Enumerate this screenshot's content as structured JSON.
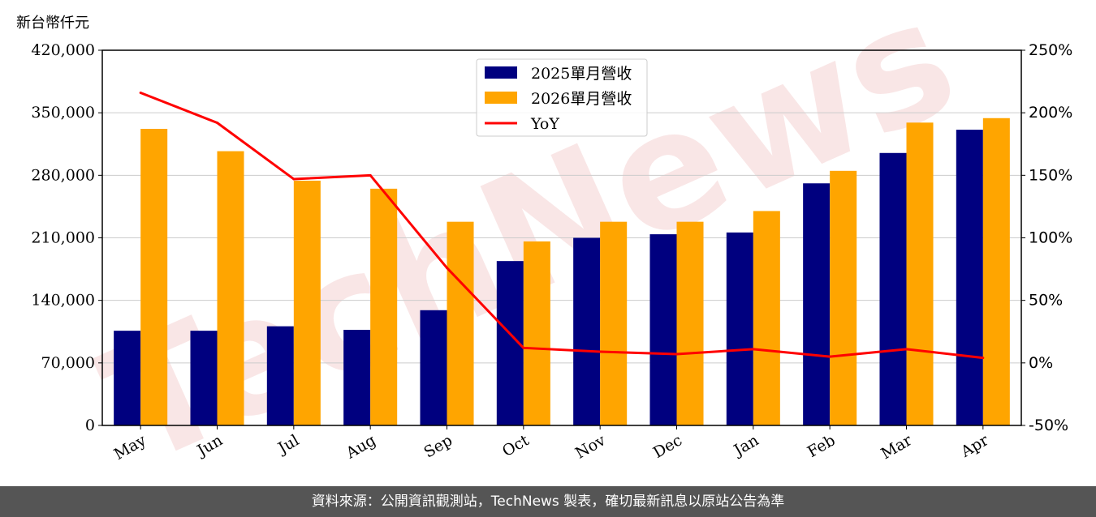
{
  "unit_label": "新台幣仟元",
  "watermark": "TechNews",
  "footer": "資料來源：公開資訊觀測站，TechNews 製表，確切最新訊息以原站公告為準",
  "colors": {
    "bar_2025": "#00007f",
    "bar_2026": "#ffa500",
    "yoy_line": "#ff0000",
    "grid": "#cccccc",
    "footer_bg": "#555555"
  },
  "chart_data": {
    "type": "bar",
    "categories": [
      "May",
      "Jun",
      "Jul",
      "Aug",
      "Sep",
      "Oct",
      "Nov",
      "Dec",
      "Jan",
      "Feb",
      "Mar",
      "Apr"
    ],
    "series": [
      {
        "name": "2025單月營收",
        "kind": "bar",
        "axis": "left",
        "values": [
          106000,
          106000,
          111000,
          107000,
          129000,
          184000,
          210000,
          214000,
          216000,
          271000,
          305000,
          331000
        ]
      },
      {
        "name": "2026單月營收",
        "kind": "bar",
        "axis": "left",
        "values": [
          332000,
          307000,
          274000,
          265000,
          228000,
          206000,
          228000,
          228000,
          240000,
          285000,
          339000,
          344000
        ]
      },
      {
        "name": "YoY",
        "kind": "line",
        "axis": "right",
        "unit": "%",
        "values": [
          216,
          192,
          147,
          150,
          76,
          12,
          9,
          7,
          11,
          5,
          11,
          4
        ]
      }
    ],
    "left_axis": {
      "ylim": [
        0,
        420000
      ],
      "ticks": [
        "0",
        "70,000",
        "140,000",
        "210,000",
        "280,000",
        "350,000",
        "420,000"
      ]
    },
    "right_axis": {
      "ylim": [
        -50,
        250
      ],
      "ticks": [
        "-50%",
        "0%",
        "50%",
        "100%",
        "150%",
        "200%",
        "250%"
      ]
    },
    "grid": true,
    "legend": "top-center"
  }
}
